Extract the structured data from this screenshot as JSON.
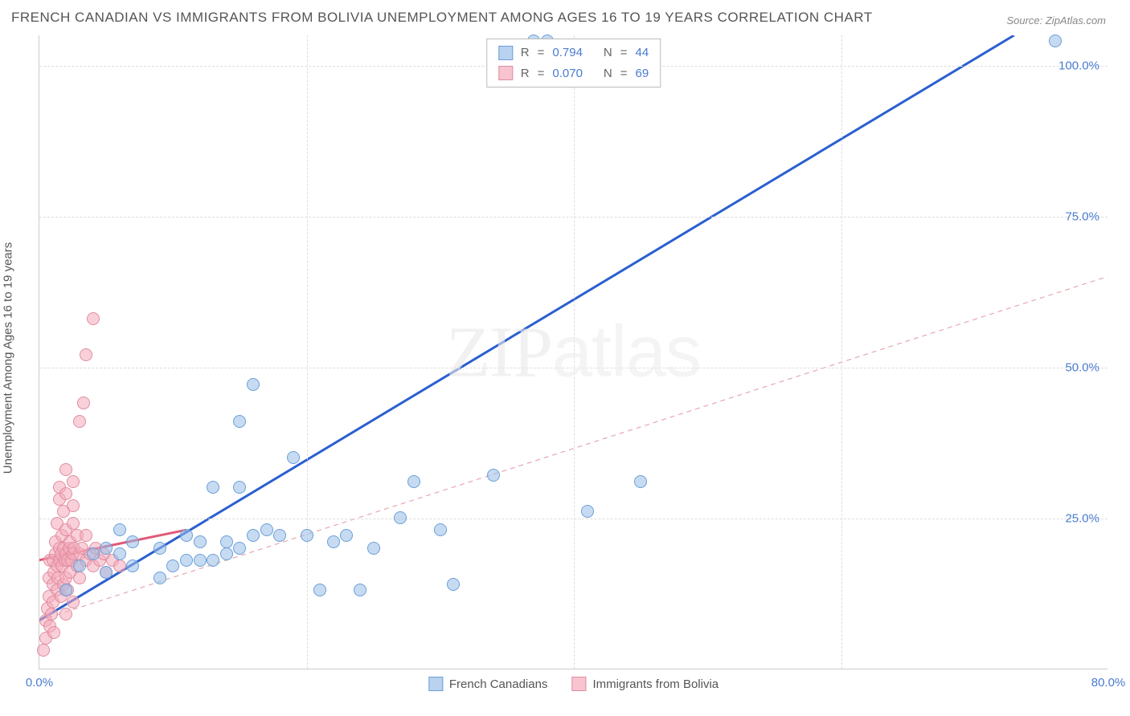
{
  "title": "FRENCH CANADIAN VS IMMIGRANTS FROM BOLIVIA UNEMPLOYMENT AMONG AGES 16 TO 19 YEARS CORRELATION CHART",
  "source": "Source: ZipAtlas.com",
  "ylabel": "Unemployment Among Ages 16 to 19 years",
  "watermark_zip": "ZIP",
  "watermark_atlas": "atlas",
  "chart": {
    "type": "scatter",
    "xlim": [
      0,
      80
    ],
    "ylim": [
      0,
      105
    ],
    "x_ticks": [
      {
        "pos": 0,
        "label": "0.0%",
        "color": "#4a7bd0"
      },
      {
        "pos": 80,
        "label": "80.0%",
        "color": "#4a7bd0"
      }
    ],
    "y_ticks": [
      {
        "pos": 25,
        "label": "25.0%",
        "color": "#4a7bd0"
      },
      {
        "pos": 50,
        "label": "50.0%",
        "color": "#4a7bd0"
      },
      {
        "pos": 75,
        "label": "75.0%",
        "color": "#4a7bd0"
      },
      {
        "pos": 100,
        "label": "100.0%",
        "color": "#4a7bd0"
      }
    ],
    "grid_x": [
      20,
      40,
      60
    ],
    "grid_y": [
      25,
      50,
      75,
      100
    ],
    "grid_color": "#dddddd",
    "background_color": "#ffffff"
  },
  "series": [
    {
      "name": "French Canadians",
      "marker_fill": "rgba(151,189,232,0.55)",
      "marker_stroke": "#6b9ed8",
      "swatch_fill": "#b9d2f0",
      "swatch_border": "#6b9ed8",
      "r_label": "R",
      "r_value": "0.794",
      "n_label": "N",
      "n_value": "44",
      "value_color": "#4a7bd0",
      "trend": {
        "x1": 0,
        "y1": 8,
        "x2": 73,
        "y2": 105,
        "color": "#2a5fd0",
        "width": 3,
        "dash": "none"
      },
      "trend_ext": {
        "x1": 0,
        "y1": 8,
        "x2": 80,
        "y2": 65,
        "color": "#e8a6b0",
        "width": 1.2,
        "dash": "6,5"
      },
      "points": [
        [
          2,
          13
        ],
        [
          3,
          17
        ],
        [
          4,
          19
        ],
        [
          5,
          16
        ],
        [
          5,
          20
        ],
        [
          6,
          19
        ],
        [
          6,
          23
        ],
        [
          7,
          17
        ],
        [
          7,
          21
        ],
        [
          9,
          15
        ],
        [
          9,
          20
        ],
        [
          10,
          17
        ],
        [
          11,
          18
        ],
        [
          11,
          22
        ],
        [
          12,
          18
        ],
        [
          12,
          21
        ],
        [
          13,
          18
        ],
        [
          13,
          30
        ],
        [
          14,
          19
        ],
        [
          14,
          21
        ],
        [
          15,
          20
        ],
        [
          15,
          30
        ],
        [
          15,
          41
        ],
        [
          16,
          22
        ],
        [
          16,
          47
        ],
        [
          17,
          23
        ],
        [
          18,
          22
        ],
        [
          19,
          35
        ],
        [
          20,
          22
        ],
        [
          21,
          13
        ],
        [
          22,
          21
        ],
        [
          23,
          22
        ],
        [
          24,
          13
        ],
        [
          25,
          20
        ],
        [
          27,
          25
        ],
        [
          28,
          31
        ],
        [
          30,
          23
        ],
        [
          31,
          14
        ],
        [
          34,
          32
        ],
        [
          37,
          104
        ],
        [
          38,
          104
        ],
        [
          41,
          26
        ],
        [
          45,
          31
        ],
        [
          76,
          104
        ]
      ]
    },
    {
      "name": "Immigrants from Bolivia",
      "marker_fill": "rgba(244,170,186,0.55)",
      "marker_stroke": "#e08ca0",
      "swatch_fill": "#f7c4d0",
      "swatch_border": "#e08ca0",
      "r_label": "R",
      "r_value": "0.070",
      "n_label": "N",
      "n_value": "69",
      "value_color": "#4a7bd0",
      "trend": {
        "x1": 0,
        "y1": 18,
        "x2": 11,
        "y2": 23,
        "color": "#e05a78",
        "width": 3,
        "dash": "none"
      },
      "points": [
        [
          0.3,
          3
        ],
        [
          0.5,
          5
        ],
        [
          0.5,
          8
        ],
        [
          0.6,
          10
        ],
        [
          0.7,
          12
        ],
        [
          0.7,
          15
        ],
        [
          0.8,
          7
        ],
        [
          0.8,
          18
        ],
        [
          0.9,
          9
        ],
        [
          1.0,
          11
        ],
        [
          1.0,
          14
        ],
        [
          1.0,
          18
        ],
        [
          1.1,
          6
        ],
        [
          1.1,
          16
        ],
        [
          1.2,
          19
        ],
        [
          1.2,
          21
        ],
        [
          1.3,
          13
        ],
        [
          1.3,
          17
        ],
        [
          1.3,
          24
        ],
        [
          1.4,
          15
        ],
        [
          1.5,
          18
        ],
        [
          1.5,
          20
        ],
        [
          1.5,
          28
        ],
        [
          1.5,
          30
        ],
        [
          1.6,
          12
        ],
        [
          1.6,
          19
        ],
        [
          1.7,
          17
        ],
        [
          1.7,
          22
        ],
        [
          1.8,
          14
        ],
        [
          1.8,
          20
        ],
        [
          1.8,
          26
        ],
        [
          1.9,
          18
        ],
        [
          2.0,
          9
        ],
        [
          2.0,
          15
        ],
        [
          2.0,
          19
        ],
        [
          2.0,
          23
        ],
        [
          2.0,
          29
        ],
        [
          2.0,
          33
        ],
        [
          2.1,
          13
        ],
        [
          2.1,
          18
        ],
        [
          2.2,
          20
        ],
        [
          2.3,
          16
        ],
        [
          2.3,
          21
        ],
        [
          2.4,
          18
        ],
        [
          2.5,
          11
        ],
        [
          2.5,
          19
        ],
        [
          2.5,
          24
        ],
        [
          2.5,
          27
        ],
        [
          2.5,
          31
        ],
        [
          2.6,
          20
        ],
        [
          2.8,
          17
        ],
        [
          2.8,
          22
        ],
        [
          3.0,
          15
        ],
        [
          3.0,
          19
        ],
        [
          3.0,
          41
        ],
        [
          3.2,
          20
        ],
        [
          3.3,
          44
        ],
        [
          3.5,
          18
        ],
        [
          3.5,
          22
        ],
        [
          3.5,
          52
        ],
        [
          3.8,
          19
        ],
        [
          4.0,
          17
        ],
        [
          4.0,
          58
        ],
        [
          4.2,
          20
        ],
        [
          4.5,
          18
        ],
        [
          4.8,
          19
        ],
        [
          5.0,
          16
        ],
        [
          5.5,
          18
        ],
        [
          6.0,
          17
        ]
      ]
    }
  ],
  "legend_bottom": [
    {
      "label": "French Canadians",
      "fill": "#b9d2f0",
      "border": "#6b9ed8"
    },
    {
      "label": "Immigrants from Bolivia",
      "fill": "#f7c4d0",
      "border": "#e08ca0"
    }
  ]
}
